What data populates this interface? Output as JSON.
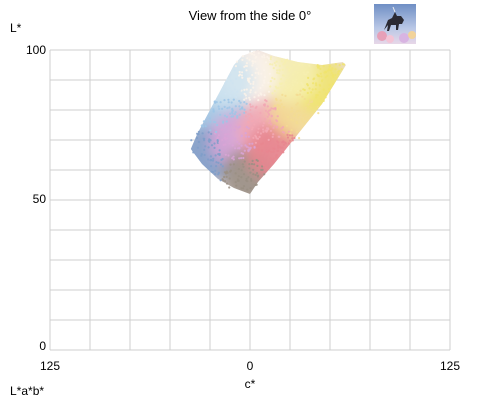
{
  "header": {
    "title": "View from the side 0°"
  },
  "thumbnail": {
    "icon": "unicorn-artwork-thumbnail"
  },
  "footer": {
    "mode_label": "L*a*b*"
  },
  "chart_data": {
    "type": "scatter",
    "title": "View from the side 0°",
    "xlabel": "c*",
    "ylabel": "L*",
    "xlim": [
      -125,
      125
    ],
    "ylim": [
      0,
      100
    ],
    "x_tick_labels": [
      "125",
      "0",
      "125"
    ],
    "y_tick_labels": [
      "0",
      "50",
      "100"
    ],
    "grid": true,
    "gamut_outline": [
      [
        0,
        52
      ],
      [
        5,
        56
      ],
      [
        15,
        62
      ],
      [
        30,
        72
      ],
      [
        45,
        82
      ],
      [
        60,
        95
      ],
      [
        58,
        96
      ],
      [
        45,
        95
      ],
      [
        30,
        96
      ],
      [
        15,
        98
      ],
      [
        5,
        100
      ],
      [
        -5,
        98
      ],
      [
        -10,
        95
      ],
      [
        -15,
        90
      ],
      [
        -25,
        80
      ],
      [
        -33,
        72
      ],
      [
        -37,
        67
      ],
      [
        -30,
        62
      ],
      [
        -20,
        57
      ],
      [
        -10,
        54
      ],
      [
        0,
        52
      ]
    ],
    "cluster_colors": [
      {
        "x": -20,
        "y": 80,
        "color": "#9ec6e6"
      },
      {
        "x": -28,
        "y": 65,
        "color": "#7f9dc9"
      },
      {
        "x": -8,
        "y": 70,
        "color": "#d9a4d6"
      },
      {
        "x": 0,
        "y": 58,
        "color": "#9a8f84"
      },
      {
        "x": 10,
        "y": 74,
        "color": "#f2a8b4"
      },
      {
        "x": 15,
        "y": 66,
        "color": "#e7868f"
      },
      {
        "x": 30,
        "y": 80,
        "color": "#f3dc92"
      },
      {
        "x": 45,
        "y": 88,
        "color": "#f0e46f"
      },
      {
        "x": 25,
        "y": 92,
        "color": "#f6efb0"
      },
      {
        "x": 0,
        "y": 92,
        "color": "#fbf3ea"
      },
      {
        "x": -15,
        "y": 90,
        "color": "#cfe3f0"
      }
    ]
  }
}
